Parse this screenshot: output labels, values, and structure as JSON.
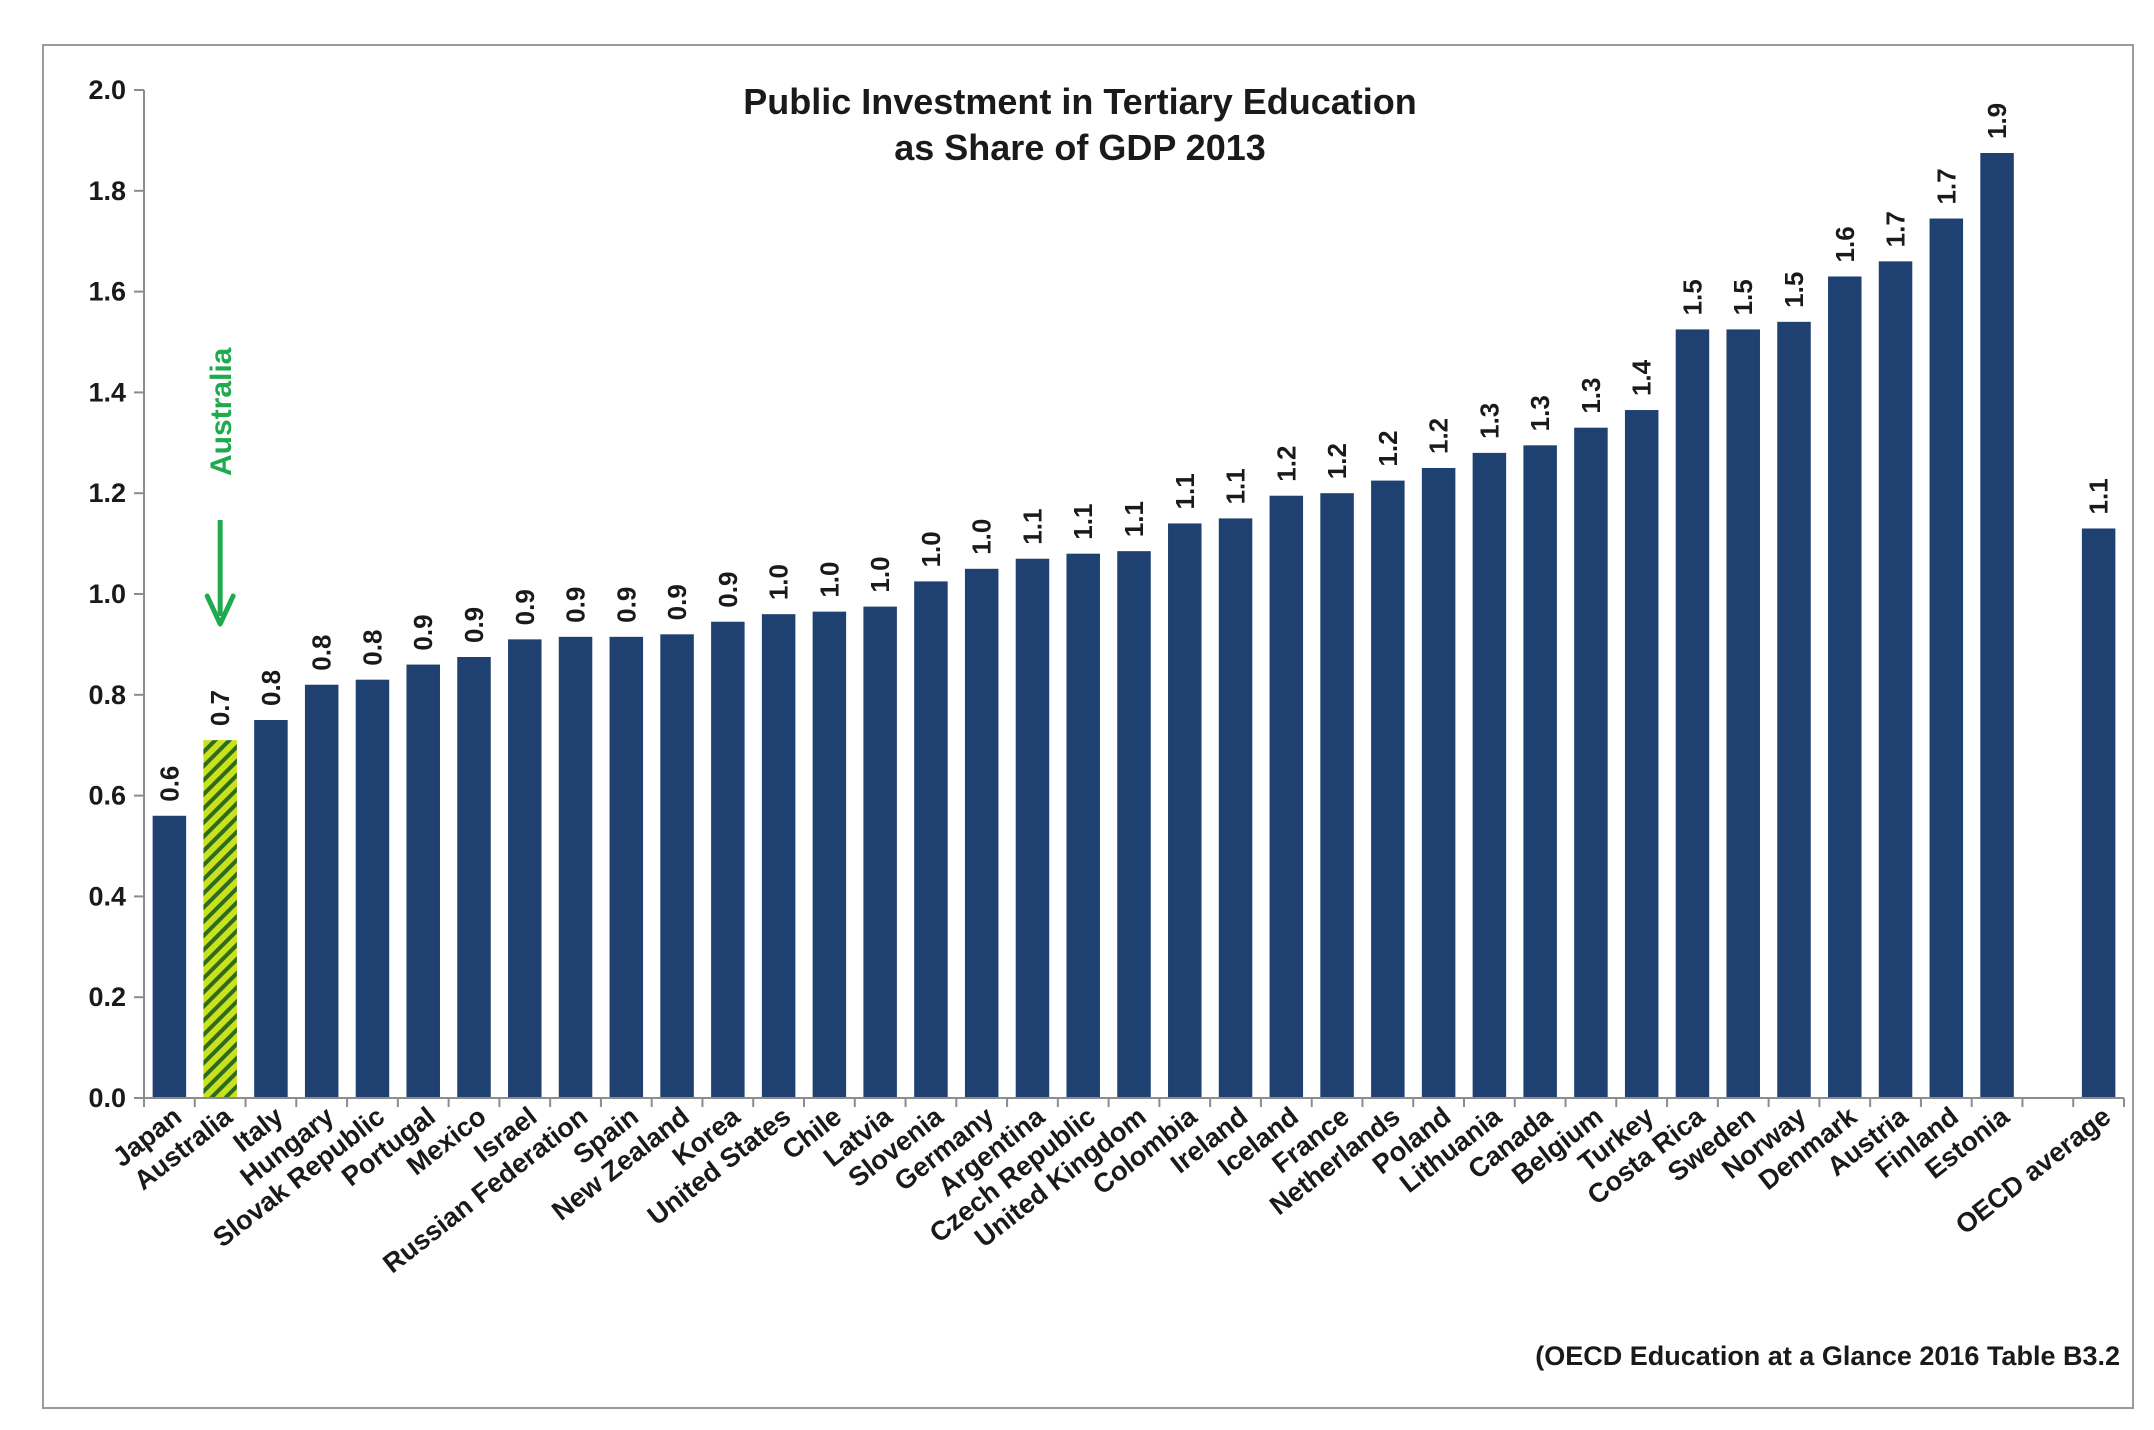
{
  "colors": {
    "bar": "#1f4171",
    "highlight_fill": "#c8e21e",
    "highlight_stripe": "#2f6a1e",
    "annotation": "#1faa4e",
    "axis": "#8c8c8c"
  },
  "annotation": {
    "label": "Australia",
    "target": "Australia",
    "icon": "arrow-down-icon"
  },
  "source_note": "(OECD Education at a Glance 2016 Table B3.2",
  "chart_data": {
    "type": "bar",
    "title": "Public Investment in Tertiary Education",
    "subtitle": "as Share of GDP 2013",
    "xlabel": "",
    "ylabel": "",
    "ylim": [
      0,
      2.0
    ],
    "yticks": [
      "0.0",
      "0.2",
      "0.4",
      "0.6",
      "0.8",
      "1.0",
      "1.2",
      "1.4",
      "1.6",
      "1.8",
      "2.0"
    ],
    "grid": false,
    "legend": "none",
    "highlight_category": "Australia",
    "gap_before": [
      "OECD average"
    ],
    "categories": [
      "Japan",
      "Australia",
      "Italy",
      "Hungary",
      "Slovak Republic",
      "Portugal",
      "Mexico",
      "Israel",
      "Russian Federation",
      "Spain",
      "New Zealand",
      "Korea",
      "United States",
      "Chile",
      "Latvia",
      "Slovenia",
      "Germany",
      "Argentina",
      "Czech Republic",
      "United Kingdom",
      "Colombia",
      "Ireland",
      "Iceland",
      "France",
      "Netherlands",
      "Poland",
      "Lithuania",
      "Canada",
      "Belgium",
      "Turkey",
      "Costa Rica",
      "Sweden",
      "Norway",
      "Denmark",
      "Austria",
      "Finland",
      "Estonia",
      "OECD average"
    ],
    "values": [
      0.56,
      0.71,
      0.75,
      0.82,
      0.83,
      0.86,
      0.875,
      0.91,
      0.915,
      0.915,
      0.92,
      0.945,
      0.96,
      0.965,
      0.975,
      1.025,
      1.05,
      1.07,
      1.08,
      1.085,
      1.14,
      1.15,
      1.195,
      1.2,
      1.225,
      1.25,
      1.28,
      1.295,
      1.33,
      1.365,
      1.525,
      1.525,
      1.54,
      1.63,
      1.66,
      1.745,
      1.875,
      1.13
    ],
    "data_labels": [
      "0.6",
      "0.7",
      "0.8",
      "0.8",
      "0.8",
      "0.9",
      "0.9",
      "0.9",
      "0.9",
      "0.9",
      "0.9",
      "0.9",
      "1.0",
      "1.0",
      "1.0",
      "1.0",
      "1.0",
      "1.1",
      "1.1",
      "1.1",
      "1.1",
      "1.1",
      "1.2",
      "1.2",
      "1.2",
      "1.2",
      "1.3",
      "1.3",
      "1.3",
      "1.4",
      "1.5",
      "1.5",
      "1.5",
      "1.6",
      "1.7",
      "1.7",
      "1.9",
      "1.1"
    ]
  }
}
